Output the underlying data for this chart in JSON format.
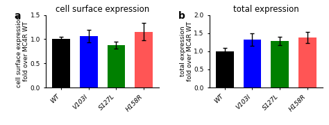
{
  "panel_a": {
    "title": "cell surface expression",
    "label": "a",
    "ylabel": "cell surface expression\nfold over MC4R WT",
    "categories": [
      "WT",
      "V103I",
      "S127L",
      "H158R"
    ],
    "values": [
      1.0,
      1.06,
      0.875,
      1.15
    ],
    "errors": [
      0.05,
      0.13,
      0.07,
      0.18
    ],
    "colors": [
      "#000000",
      "#0000ff",
      "#008000",
      "#ff5555"
    ],
    "ylim": [
      0,
      1.5
    ],
    "yticks": [
      0.0,
      0.5,
      1.0,
      1.5
    ]
  },
  "panel_b": {
    "title": "total expression",
    "label": "b",
    "ylabel": "total expression\nfold over MC4R WT",
    "categories": [
      "WT",
      "V103I",
      "S127L",
      "H158R"
    ],
    "values": [
      1.0,
      1.32,
      1.28,
      1.38
    ],
    "errors": [
      0.09,
      0.17,
      0.12,
      0.15
    ],
    "colors": [
      "#000000",
      "#0000ff",
      "#008000",
      "#ff5555"
    ],
    "ylim": [
      0,
      2.0
    ],
    "yticks": [
      0.0,
      0.5,
      1.0,
      1.5,
      2.0
    ]
  },
  "background_color": "#ffffff",
  "bar_width": 0.65,
  "title_fontsize": 8.5,
  "tick_fontsize": 6.5,
  "ylabel_fontsize": 6.5
}
